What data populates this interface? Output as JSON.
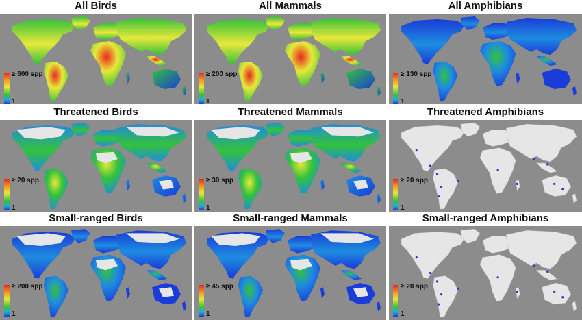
{
  "panels": [
    {
      "title": "All Birds",
      "legend_max": "≥ 600 spp",
      "legend_min": "1",
      "style": "full",
      "richness": "high"
    },
    {
      "title": "All Mammals",
      "legend_max": "≥ 200 spp",
      "legend_min": "1",
      "style": "full",
      "richness": "high"
    },
    {
      "title": "All Amphibians",
      "legend_max": "≥ 130 spp",
      "legend_min": "1",
      "style": "full",
      "richness": "low"
    },
    {
      "title": "Threatened Birds",
      "legend_max": "≥ 20 spp",
      "legend_min": "1",
      "style": "partial",
      "richness": "medium"
    },
    {
      "title": "Threatened Mammals",
      "legend_max": "≥ 30 spp",
      "legend_min": "1",
      "style": "partial",
      "richness": "medium"
    },
    {
      "title": "Threatened Amphibians",
      "legend_max": "≥ 20 spp",
      "legend_min": "1",
      "style": "sparse",
      "richness": "low"
    },
    {
      "title": "Small-ranged Birds",
      "legend_max": "≥ 200 spp",
      "legend_min": "1",
      "style": "partial",
      "richness": "low"
    },
    {
      "title": "Small-ranged Mammals",
      "legend_max": "≥ 45 spp",
      "legend_min": "1",
      "style": "partial",
      "richness": "low"
    },
    {
      "title": "Small-ranged Amphibians",
      "legend_max": "≥ 20 spp",
      "legend_min": "1",
      "style": "sparse",
      "richness": "low"
    }
  ],
  "colors": {
    "ocean": "#8c8c8c",
    "no_data_land": "#e6e6e6",
    "scale_high": "#e8281e",
    "scale_mid": "#e8e83a",
    "scale_green": "#34c23a",
    "scale_low": "#1a3cd8"
  }
}
